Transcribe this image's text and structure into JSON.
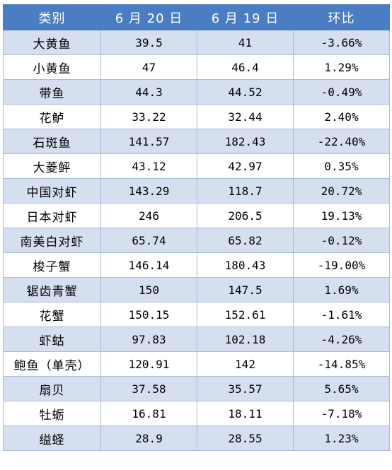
{
  "table": {
    "headers": [
      "类别",
      "6 月 20 日",
      "6 月 19 日",
      "环比"
    ],
    "rows": [
      {
        "name": "大黄鱼",
        "jun20": "39.5",
        "jun19": "41",
        "change": "-3.66%"
      },
      {
        "name": "小黄鱼",
        "jun20": "47",
        "jun19": "46.4",
        "change": "1.29%"
      },
      {
        "name": "带鱼",
        "jun20": "44.3",
        "jun19": "44.52",
        "change": "-0.49%"
      },
      {
        "name": "花鲈",
        "jun20": "33.22",
        "jun19": "32.44",
        "change": "2.40%"
      },
      {
        "name": "石斑鱼",
        "jun20": "141.57",
        "jun19": "182.43",
        "change": "-22.40%"
      },
      {
        "name": "大菱鲆",
        "jun20": "43.12",
        "jun19": "42.97",
        "change": "0.35%"
      },
      {
        "name": "中国对虾",
        "jun20": "143.29",
        "jun19": "118.7",
        "change": "20.72%"
      },
      {
        "name": "日本对虾",
        "jun20": "246",
        "jun19": "206.5",
        "change": "19.13%"
      },
      {
        "name": "南美白对虾",
        "jun20": "65.74",
        "jun19": "65.82",
        "change": "-0.12%"
      },
      {
        "name": "梭子蟹",
        "jun20": "146.14",
        "jun19": "180.43",
        "change": "-19.00%"
      },
      {
        "name": "锯齿青蟹",
        "jun20": "150",
        "jun19": "147.5",
        "change": "1.69%"
      },
      {
        "name": "花蟹",
        "jun20": "150.15",
        "jun19": "152.61",
        "change": "-1.61%"
      },
      {
        "name": "虾蛄",
        "jun20": "97.83",
        "jun19": "102.18",
        "change": "-4.26%"
      },
      {
        "name": "鲍鱼（单壳）",
        "jun20": "120.91",
        "jun19": "142",
        "change": "-14.85%"
      },
      {
        "name": "扇贝",
        "jun20": "37.58",
        "jun19": "35.57",
        "change": "5.65%"
      },
      {
        "name": "牡蛎",
        "jun20": "16.81",
        "jun19": "18.11",
        "change": "-7.18%"
      },
      {
        "name": "缢蛏",
        "jun20": "28.9",
        "jun19": "28.55",
        "change": "1.23%"
      }
    ]
  },
  "colors": {
    "header_bg": "#4a7dc2",
    "band_bg": "#d5dff0",
    "plain_bg": "#ffffff",
    "border": "#a8bcd9"
  }
}
